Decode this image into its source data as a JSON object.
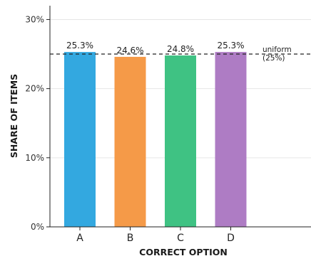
{
  "chart_data": {
    "type": "bar",
    "categories": [
      "A",
      "B",
      "C",
      "D"
    ],
    "values": [
      25.3,
      24.6,
      24.8,
      25.3
    ],
    "value_labels": [
      "25.3%",
      "24.6%",
      "24.8%",
      "25.3%"
    ],
    "bar_colors": [
      "#33a8e0",
      "#f59a48",
      "#3fc283",
      "#ae7cc4"
    ],
    "xlabel": "CORRECT OPTION",
    "ylabel": "SHARE OF ITEMS",
    "ylim": [
      0,
      32
    ],
    "yticks": [
      0,
      10,
      20,
      30
    ],
    "ytick_labels": [
      "0%",
      "10%",
      "20%",
      "30%"
    ],
    "grid": "horizontal",
    "reference_line": {
      "value": 25,
      "style": "dashed",
      "label_line1": "uniform",
      "label_line2": "(25%)"
    }
  }
}
